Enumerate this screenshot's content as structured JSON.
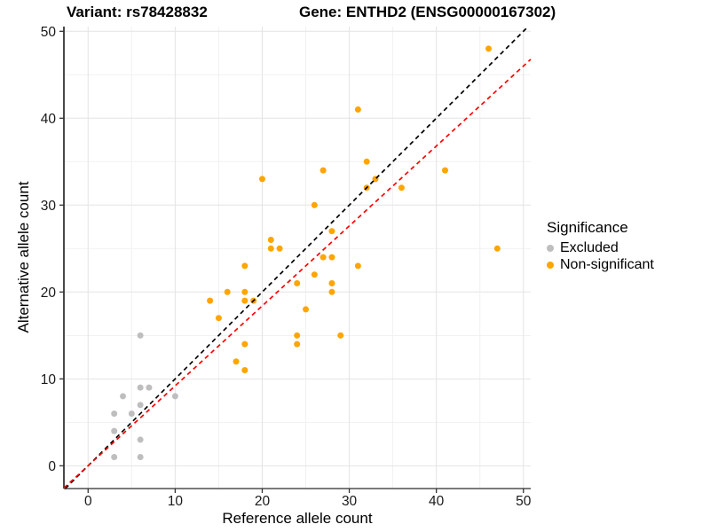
{
  "header": {
    "variant_title": "Variant: rs78428832",
    "gene_title": "Gene: ENTHD2 (ENSG00000167302)"
  },
  "legend": {
    "title": "Significance",
    "items": [
      {
        "label": "Excluded",
        "color": "#BEBEBE"
      },
      {
        "label": "Non-significant",
        "color": "#FFA500"
      }
    ]
  },
  "chart_data": {
    "type": "scatter",
    "xlabel": "Reference allele count",
    "ylabel": "Alternative allele count",
    "x_ticks": [
      0,
      10,
      20,
      30,
      40,
      50
    ],
    "y_ticks": [
      0,
      10,
      20,
      30,
      40,
      50
    ],
    "x_minor_ticks": [
      5,
      15,
      25,
      35,
      45
    ],
    "y_minor_ticks": [
      5,
      15,
      25,
      35,
      45
    ],
    "xlim": [
      -2.78,
      50.84
    ],
    "ylim": [
      -2.62,
      50.54
    ],
    "grid": true,
    "legend_position": "right",
    "series": [
      {
        "name": "Excluded",
        "color": "#BEBEBE",
        "points": [
          [
            3,
            1
          ],
          [
            3,
            4
          ],
          [
            3,
            6
          ],
          [
            4,
            8
          ],
          [
            5,
            6
          ],
          [
            6,
            1
          ],
          [
            6,
            3
          ],
          [
            6,
            7
          ],
          [
            6,
            9
          ],
          [
            6,
            15
          ],
          [
            7,
            9
          ],
          [
            10,
            8
          ]
        ]
      },
      {
        "name": "Non-significant",
        "color": "#FFA500",
        "points": [
          [
            14,
            19
          ],
          [
            15,
            17
          ],
          [
            16,
            20
          ],
          [
            17,
            12
          ],
          [
            18,
            11
          ],
          [
            18,
            14
          ],
          [
            18,
            19
          ],
          [
            18,
            20
          ],
          [
            18,
            23
          ],
          [
            19,
            19
          ],
          [
            20,
            33
          ],
          [
            21,
            25
          ],
          [
            21,
            26
          ],
          [
            22,
            25
          ],
          [
            24,
            14
          ],
          [
            24,
            15
          ],
          [
            24,
            21
          ],
          [
            25,
            18
          ],
          [
            26,
            22
          ],
          [
            26,
            30
          ],
          [
            27,
            24
          ],
          [
            27,
            34
          ],
          [
            28,
            20
          ],
          [
            28,
            21
          ],
          [
            28,
            24
          ],
          [
            28,
            27
          ],
          [
            29,
            15
          ],
          [
            31,
            23
          ],
          [
            31,
            41
          ],
          [
            32,
            32
          ],
          [
            32,
            35
          ],
          [
            33,
            33
          ],
          [
            36,
            32
          ],
          [
            41,
            34
          ],
          [
            46,
            48
          ],
          [
            47,
            25
          ]
        ]
      }
    ],
    "reference_lines": [
      {
        "name": "identity-line",
        "slope": 1,
        "intercept": 0,
        "color": "#000000",
        "style": "dashed"
      },
      {
        "name": "expected-ratio-line",
        "slope": 0.92,
        "intercept": 0,
        "color": "#FF0000",
        "style": "dashed"
      }
    ]
  }
}
